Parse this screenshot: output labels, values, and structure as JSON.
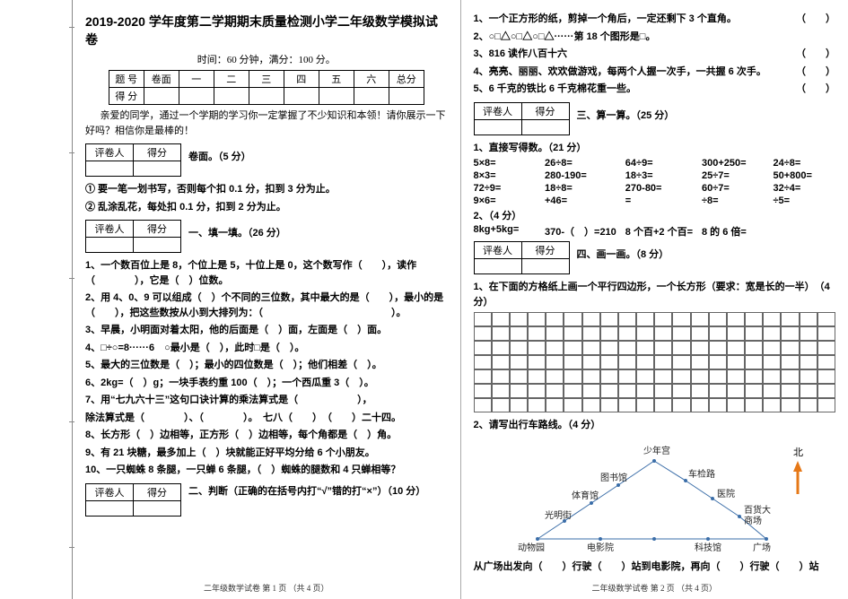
{
  "left": {
    "title": "2019-2020 学年度第二学期期末质量检测小学二年级数学模拟试卷",
    "subtitle": "时间：60 分钟，满分：100 分。",
    "score_headers": [
      "题 号",
      "卷面",
      "一",
      "二",
      "三",
      "四",
      "五",
      "六",
      "总分"
    ],
    "score_row_label": "得 分",
    "intro": "亲爱的同学，通过一个学期的学习你一定掌握了不少知识和本领！请你展示一下好吗？相信你是最棒的！",
    "mini_cols": [
      "评卷人",
      "得分"
    ],
    "section_cover": "卷面。（5 分）",
    "rule1": "① 要一笔一划书写，否则每个扣 0.1 分，扣到 3 分为止。",
    "rule2": "② 乱涂乱花，每处扣 0.1 分，扣到 2 分为止。",
    "section1": "一、填一填。（26 分）",
    "q": {
      "q1": "1、一个数百位上是 8，个位上是 5，十位上是 0，这个数写作（　　），读作（　　　　），它是（　）位数。",
      "q2": "2、用 4、0、9 可以组成（　）个不同的三位数，其中最大的是（　　），最小的是（　　），把这些数按从小到大排列为：（　　　　　　　　　　　　　）。",
      "q3": "3、早晨，小明面对着太阳，他的后面是（　）面，左面是（　）面。",
      "q4": "4、□÷○=8······6　○最小是（　），此时□是（　）。",
      "q5": "5、最大的三位数是（　）；最小的四位数是（　）；他们相差（　）。",
      "q6": "6、2kg=（　）g；一块手表约重 100（　）；一个西瓜重 3（　）。",
      "q7": "7、用“七九六十三”这句口诀计算的乘法算式是（　　　　　　），",
      "q7b": "除法算式是（　　　　）、（　　　　）。　七八（　　）　（　　）二十四。",
      "q8": "8、长方形（　）边相等，正方形（　）边相等，每个角都是（　）角。",
      "q9": "9、有 21 块糖，最多加上（　）块就能正好平均分给 6 个小朋友。",
      "q10": "10、一只蜘蛛 8 条腿，一只蝉 6 条腿，（　）蜘蛛的腿数和 4 只蝉相等？"
    },
    "section2": "二、判断（正确的在括号内打“√”错的打“×”）（10 分）",
    "footer": "二年级数学试卷 第 1 页 （共 4 页）"
  },
  "right": {
    "j": {
      "j1": "1、一个正方形的纸，剪掉一个角后，一定还剩下 3 个直角。",
      "j2": "2、○□△○□△○□△······第 18 个图形是□。",
      "j3": "3、816 读作八百十六",
      "j4": "4、亮亮、丽丽、欢欢做游戏，每两个人握一次手，一共握 6 次手。",
      "j5": "5、6 千克的铁比 6 千克棉花重一些。"
    },
    "paren": "（　　）",
    "mini_cols": [
      "评卷人",
      "得分"
    ],
    "section3": "三、算一算。（25 分）",
    "oral_title": "1、直接写得数。（21 分）",
    "oral": [
      [
        "5×8=",
        "26÷8=",
        "64÷9=",
        "300+250=",
        "24÷8="
      ],
      [
        "8×3=",
        "280-190=",
        "18÷3=",
        "25÷7=",
        "50+800="
      ],
      [
        "72÷9=",
        "18÷8=",
        "270-80=",
        "60÷7=",
        "32÷4="
      ],
      [
        "9×6=",
        "+46=",
        "=",
        "÷8=",
        "÷5="
      ],
      [
        "2、（4 分）",
        "",
        "",
        "",
        ""
      ],
      [
        "8kg+5kg=",
        "370-（　）=210",
        "8 个百+2 个百=",
        "8 的 6 倍=",
        ""
      ]
    ],
    "section4": "四、画一画。（8 分）",
    "draw1": "1、在下面的方格纸上画一个平行四边形，一个长方形（要求：宽是长的一半）　（4 分）",
    "draw2": "2、请写出行车路线。（4 分）",
    "route": {
      "north_label": "北",
      "nodes": {
        "top": "少年宫",
        "left1": "图书馆",
        "left2": "体育馆",
        "left3": "光明街",
        "left4": "动物园",
        "right1": "车检路",
        "right2": "医院",
        "right3": "百货大",
        "right4": "商场",
        "bottom1": "电影院",
        "bottom2": "科技馆",
        "bottom3": "广场"
      },
      "question": "从广场出发向（　　）行驶（　　）站到电影院，再向（　　）行驶（　　）站"
    },
    "footer": "二年级数学试卷 第 2 页 （共 4 页）"
  },
  "style": {
    "gutter_ticks": [
      30,
      170,
      310,
      470,
      610
    ]
  }
}
